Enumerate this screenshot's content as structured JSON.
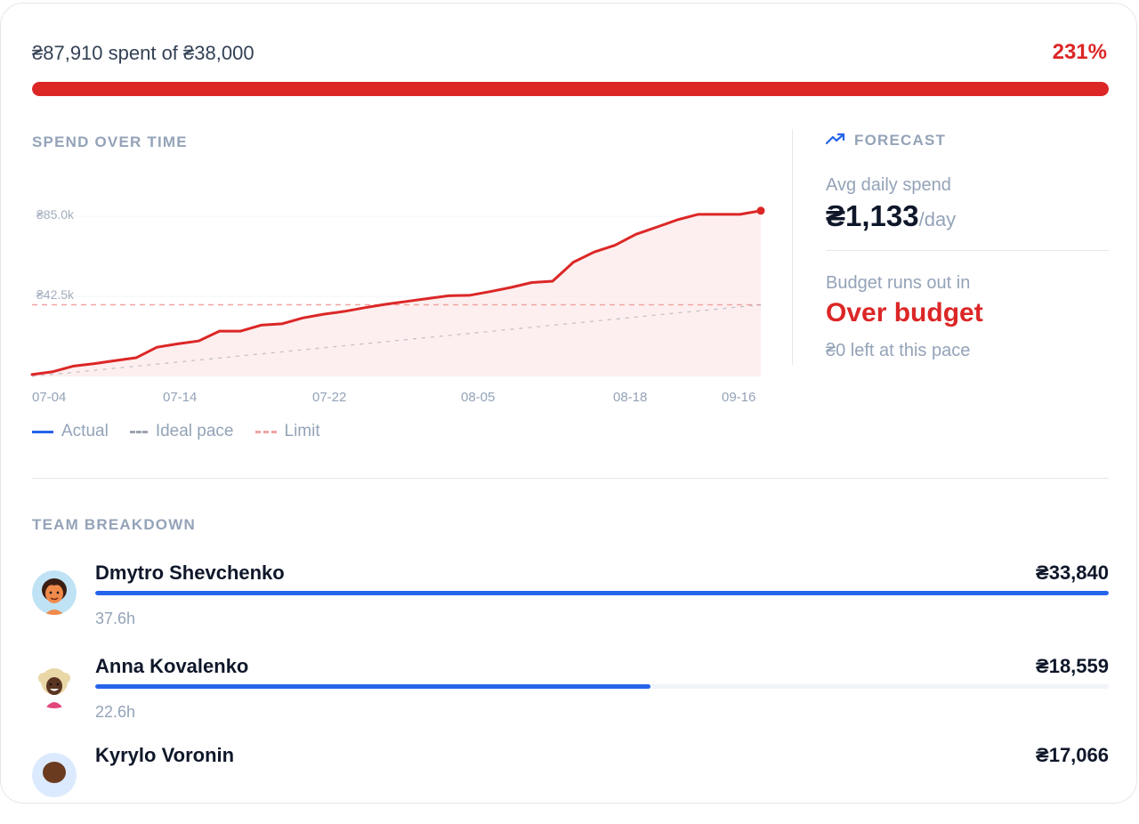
{
  "summary": {
    "spent_text": "₴87,910 spent of ₴38,000",
    "percent_text": "231%",
    "progress_fraction": 1.0,
    "accent_color": "#dc2626"
  },
  "spend_chart": {
    "section_title": "SPEND OVER TIME",
    "legend": {
      "actual": "Actual",
      "ideal": "Ideal pace",
      "limit": "Limit"
    }
  },
  "chart_data": {
    "type": "area",
    "x_tick_labels": [
      "07-04",
      "07-14",
      "07-22",
      "08-05",
      "08-18",
      "09-16"
    ],
    "y_tick_labels": [
      "₴85.0k",
      "₴42.5k"
    ],
    "ylim": [
      0,
      110000
    ],
    "grid": true,
    "actual": {
      "color": "#dc2626",
      "values": [
        1000,
        2500,
        5500,
        6800,
        8400,
        9900,
        15500,
        17300,
        18800,
        24000,
        24000,
        27200,
        27900,
        31000,
        33000,
        34500,
        36500,
        38300,
        39800,
        41300,
        42800,
        43000,
        45000,
        47200,
        49800,
        50500,
        60600,
        66000,
        69600,
        75400,
        79200,
        83100,
        86000,
        86000,
        86000,
        87910
      ]
    },
    "ideal_pace": {
      "color": "#9ca3af",
      "start": 0,
      "end": 38000
    },
    "limit": {
      "color": "#f1a3a3",
      "value": 38000
    }
  },
  "forecast": {
    "title": "FORECAST",
    "avg_label": "Avg daily spend",
    "avg_value": "₴1,133",
    "avg_unit": "/day",
    "runs_out_label": "Budget runs out in",
    "runs_out_value": "Over budget",
    "left_text": "₴0 left at this pace"
  },
  "team": {
    "title": "TEAM BREAKDOWN",
    "members": [
      {
        "name": "Dmytro Shevchenko",
        "amount": "₴33,840",
        "hours": "37.6h",
        "fraction": 1.0
      },
      {
        "name": "Anna Kovalenko",
        "amount": "₴18,559",
        "hours": "22.6h",
        "fraction": 0.548
      },
      {
        "name": "Kyrylo Voronin",
        "amount": "₴17,066",
        "hours": "",
        "fraction": 0.504
      }
    ],
    "bar_color": "#2563eb"
  }
}
